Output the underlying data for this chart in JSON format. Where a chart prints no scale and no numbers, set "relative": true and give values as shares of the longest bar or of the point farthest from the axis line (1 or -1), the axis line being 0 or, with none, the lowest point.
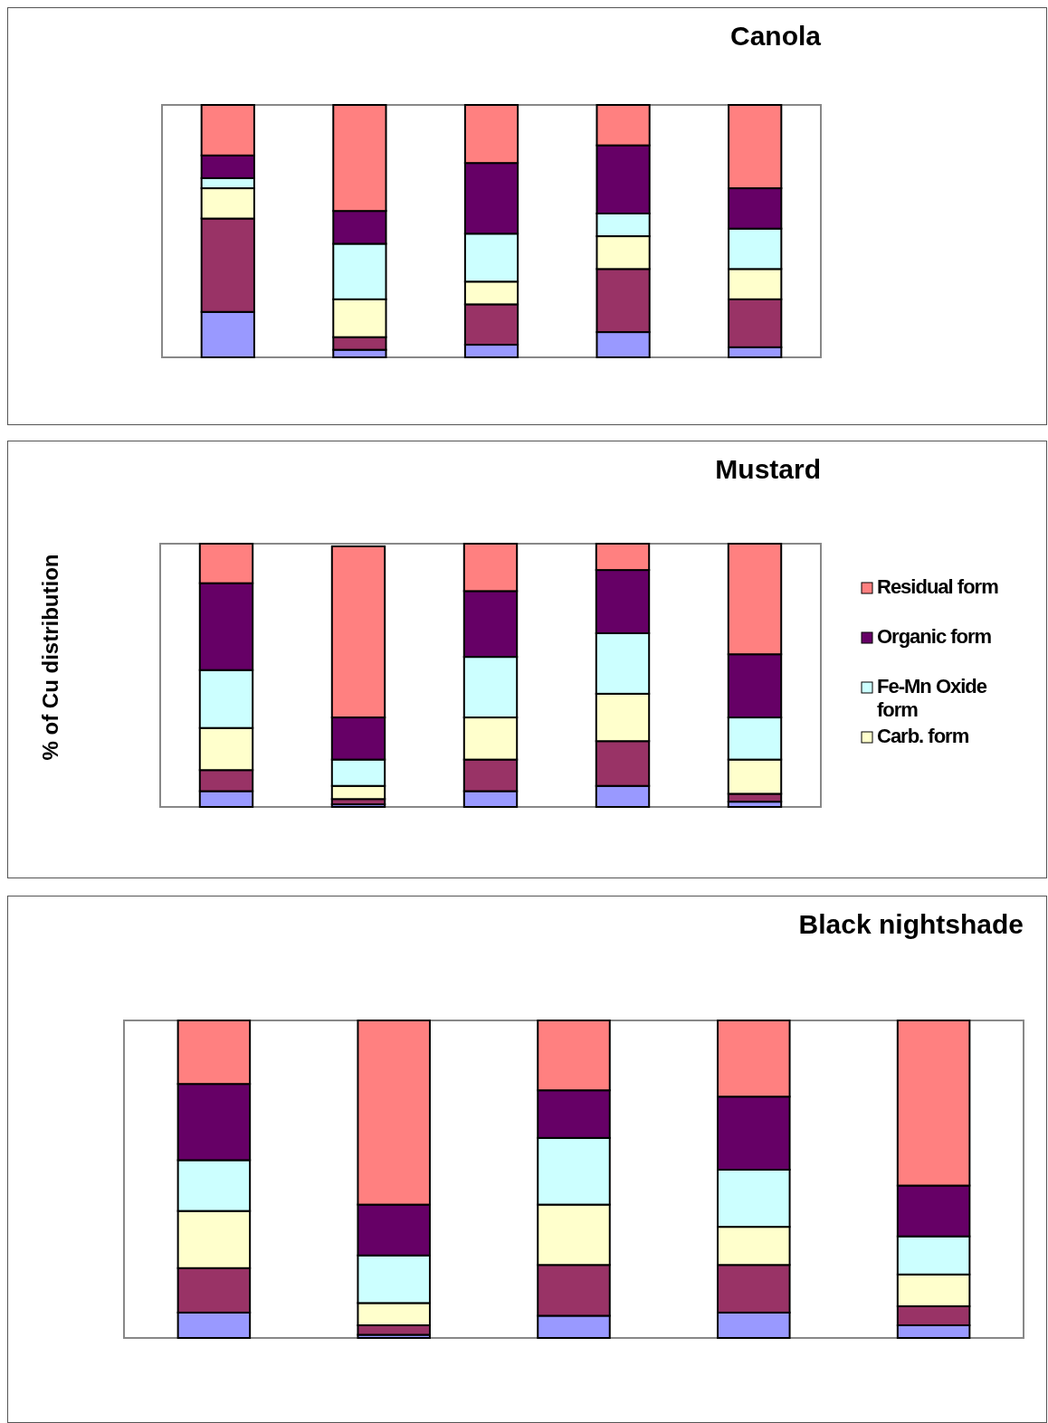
{
  "chart_data": [
    {
      "type": "bar",
      "title": "Canola",
      "stacked": true,
      "relative": true,
      "categories": [
        null,
        null,
        null,
        null,
        null
      ],
      "series": [
        {
          "color": "#9999ff",
          "values": [
            0.18,
            0.03,
            0.05,
            0.1,
            0.04
          ]
        },
        {
          "color": "#993366",
          "values": [
            0.37,
            0.05,
            0.16,
            0.25,
            0.19
          ]
        },
        {
          "color": "#ffffcc",
          "values": [
            0.12,
            0.15,
            0.09,
            0.13,
            0.12
          ]
        },
        {
          "color": "#ccffff",
          "values": [
            0.04,
            0.22,
            0.19,
            0.09,
            0.16
          ]
        },
        {
          "color": "#660066",
          "values": [
            0.09,
            0.13,
            0.28,
            0.27,
            0.16
          ]
        },
        {
          "color": "#ff8080",
          "values": [
            0.2,
            0.42,
            0.23,
            0.16,
            0.33
          ]
        }
      ]
    },
    {
      "type": "bar",
      "title": "Mustard",
      "ylabel": "% of Cu distribution",
      "stacked": true,
      "relative": true,
      "legend": "right",
      "categories": [
        null,
        null,
        null,
        null,
        null
      ],
      "series": [
        {
          "color": "#9999ff",
          "values": [
            0.06,
            0.01,
            0.06,
            0.08,
            0.02
          ]
        },
        {
          "color": "#993366",
          "values": [
            0.08,
            0.02,
            0.12,
            0.17,
            0.03
          ]
        },
        {
          "name": "Carb. form",
          "color": "#ffffcc",
          "values": [
            0.16,
            0.05,
            0.16,
            0.18,
            0.13
          ]
        },
        {
          "name": "Fe-Mn Oxide form",
          "color": "#ccffff",
          "values": [
            0.22,
            0.1,
            0.23,
            0.23,
            0.16
          ]
        },
        {
          "name": "Organic form",
          "color": "#660066",
          "values": [
            0.33,
            0.16,
            0.25,
            0.24,
            0.24
          ]
        },
        {
          "name": "Residual form",
          "color": "#ff8080",
          "values": [
            0.15,
            0.65,
            0.18,
            0.1,
            0.42
          ]
        }
      ]
    },
    {
      "type": "bar",
      "title": "Black nightshade",
      "stacked": true,
      "relative": true,
      "categories": [
        null,
        null,
        null,
        null,
        null
      ],
      "series": [
        {
          "color": "#9999ff",
          "values": [
            0.08,
            0.01,
            0.07,
            0.08,
            0.04
          ]
        },
        {
          "color": "#993366",
          "values": [
            0.14,
            0.03,
            0.16,
            0.15,
            0.06
          ]
        },
        {
          "color": "#ffffcc",
          "values": [
            0.18,
            0.07,
            0.19,
            0.12,
            0.1
          ]
        },
        {
          "color": "#ccffff",
          "values": [
            0.16,
            0.15,
            0.21,
            0.18,
            0.12
          ]
        },
        {
          "color": "#660066",
          "values": [
            0.24,
            0.16,
            0.15,
            0.23,
            0.16
          ]
        },
        {
          "color": "#ff8080",
          "values": [
            0.2,
            0.58,
            0.22,
            0.24,
            0.52
          ]
        }
      ]
    }
  ]
}
